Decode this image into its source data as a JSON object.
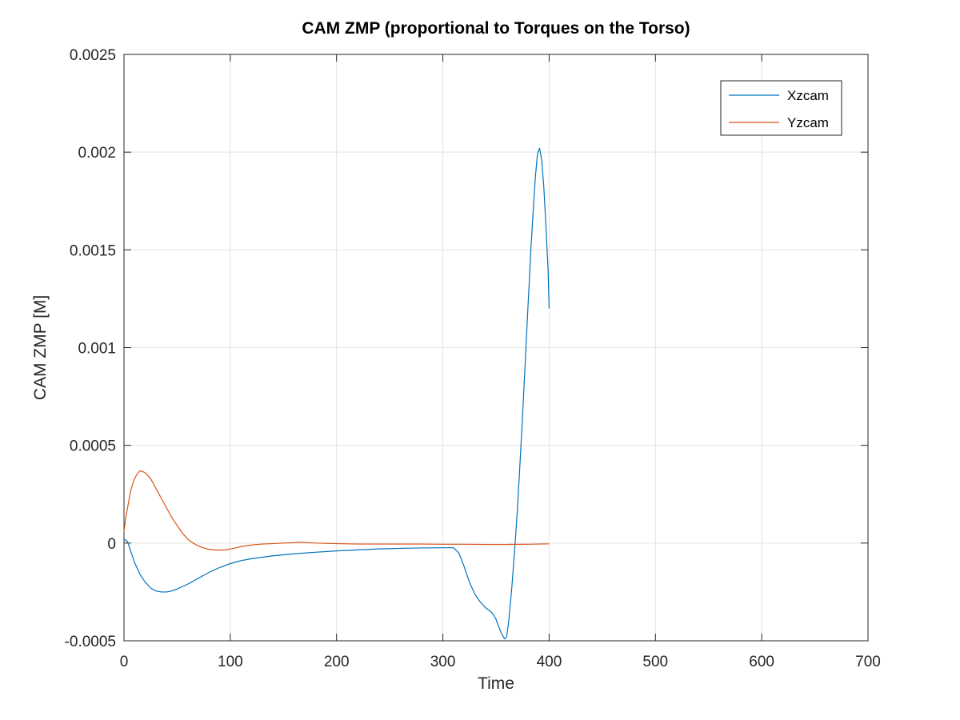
{
  "chart_data": {
    "type": "line",
    "title": "CAM ZMP (proportional to Torques on the Torso)",
    "xlabel": "Time",
    "ylabel": "CAM ZMP [M]",
    "xlim": [
      0,
      700
    ],
    "ylim": [
      -0.0005,
      0.0025
    ],
    "xticks": [
      0,
      100,
      200,
      300,
      400,
      500,
      600,
      700
    ],
    "xtick_labels": [
      "0",
      "100",
      "200",
      "300",
      "400",
      "500",
      "600",
      "700"
    ],
    "yticks": [
      -0.0005,
      0,
      0.0005,
      0.001,
      0.0015,
      0.002,
      0.0025
    ],
    "ytick_labels": [
      "-0.0005",
      "0",
      "0.0005",
      "0.001",
      "0.0015",
      "0.002",
      "0.0025"
    ],
    "grid": true,
    "legend_position": "top-right",
    "series": [
      {
        "name": "Xzcam",
        "color": "#0072BD",
        "x": [
          0,
          3,
          5,
          10,
          15,
          20,
          25,
          30,
          35,
          40,
          45,
          50,
          60,
          70,
          80,
          90,
          100,
          110,
          120,
          140,
          160,
          180,
          200,
          220,
          240,
          260,
          280,
          300,
          305,
          310,
          315,
          320,
          325,
          330,
          335,
          340,
          345,
          348,
          350,
          352,
          355,
          358,
          360,
          362,
          365,
          368,
          370,
          372,
          375,
          378,
          380,
          383,
          385,
          387,
          389,
          391,
          393,
          395,
          397,
          399,
          400
        ],
        "y": [
          2e-05,
          1e-05,
          -2e-05,
          -0.0001,
          -0.00016,
          -0.0002,
          -0.00023,
          -0.000245,
          -0.00025,
          -0.00025,
          -0.000245,
          -0.000235,
          -0.00021,
          -0.00018,
          -0.00015,
          -0.000125,
          -0.000105,
          -9e-05,
          -8e-05,
          -6.5e-05,
          -5.5e-05,
          -4.7e-05,
          -4e-05,
          -3.5e-05,
          -3e-05,
          -2.7e-05,
          -2.5e-05,
          -2.4e-05,
          -2.4e-05,
          -2.4e-05,
          -5e-05,
          -0.00012,
          -0.0002,
          -0.00026,
          -0.0003,
          -0.00033,
          -0.00035,
          -0.00037,
          -0.00039,
          -0.00042,
          -0.00046,
          -0.00049,
          -0.00048,
          -0.0004,
          -0.00022,
          0.0,
          0.00016,
          0.00035,
          0.00065,
          0.00098,
          0.0012,
          0.00152,
          0.0017,
          0.00187,
          0.00199,
          0.00202,
          0.00196,
          0.00182,
          0.00162,
          0.0014,
          0.0012
        ]
      },
      {
        "name": "Yzcam",
        "color": "#D95319",
        "x": [
          0,
          2,
          4,
          6,
          8,
          10,
          12,
          15,
          18,
          20,
          25,
          30,
          35,
          40,
          45,
          50,
          55,
          60,
          65,
          70,
          75,
          80,
          85,
          90,
          95,
          100,
          105,
          110,
          120,
          130,
          140,
          150,
          160,
          165,
          170,
          180,
          200,
          220,
          250,
          280,
          300,
          320,
          340,
          360,
          380,
          400
        ],
        "y": [
          6e-05,
          0.00014,
          0.0002,
          0.00026,
          0.0003,
          0.00033,
          0.00035,
          0.00037,
          0.000365,
          0.00036,
          0.00033,
          0.00028,
          0.00023,
          0.00018,
          0.00013,
          9e-05,
          5e-05,
          2e-05,
          0.0,
          -1.5e-05,
          -2.5e-05,
          -3.2e-05,
          -3.5e-05,
          -3.6e-05,
          -3.5e-05,
          -3e-05,
          -2.5e-05,
          -1.8e-05,
          -1e-05,
          -5e-06,
          -3e-06,
          0.0,
          2e-06,
          4e-06,
          3e-06,
          0.0,
          -3e-06,
          -5e-06,
          -5e-06,
          -5e-06,
          -6e-06,
          -6e-06,
          -7e-06,
          -7e-06,
          -6e-06,
          -4e-06
        ]
      }
    ]
  }
}
